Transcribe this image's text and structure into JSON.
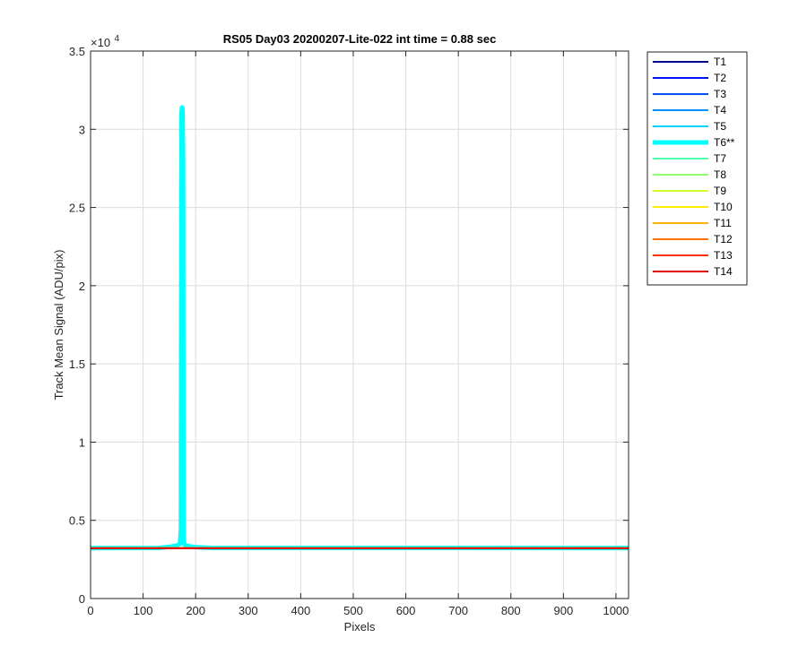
{
  "chart_data": {
    "type": "line",
    "title": "RS05 Day03 20200207-Lite-022 int time = 0.88 sec",
    "xlabel": "Pixels",
    "ylabel": "Track Mean Signal (ADU/pix)",
    "y_exponent_base": "×10",
    "y_exponent_power": "4",
    "xlim": [
      0,
      1024
    ],
    "ylim": [
      0,
      35000
    ],
    "grid": true,
    "legend_position": "outside-right",
    "x_ticks": [
      0,
      100,
      200,
      300,
      400,
      500,
      600,
      700,
      800,
      900,
      1000
    ],
    "x_tick_labels": [
      "0",
      "100",
      "200",
      "300",
      "400",
      "500",
      "600",
      "700",
      "800",
      "900",
      "1000"
    ],
    "y_ticks": [
      0,
      5000,
      10000,
      15000,
      20000,
      25000,
      30000,
      35000
    ],
    "y_tick_labels": [
      "0",
      "0.5",
      "1",
      "1.5",
      "2",
      "2.5",
      "3",
      "3.5"
    ],
    "series": [
      {
        "name": "T1",
        "color": "#00008f",
        "width": 2,
        "x": [
          0,
          1024
        ],
        "y": [
          3220,
          3220
        ]
      },
      {
        "name": "T2",
        "color": "#0010ff",
        "width": 2,
        "x": [
          0,
          1024
        ],
        "y": [
          3222,
          3222
        ]
      },
      {
        "name": "T3",
        "color": "#0050ff",
        "width": 2,
        "x": [
          0,
          1024
        ],
        "y": [
          3224,
          3224
        ]
      },
      {
        "name": "T4",
        "color": "#0090ff",
        "width": 2,
        "x": [
          0,
          1024
        ],
        "y": [
          3226,
          3226
        ]
      },
      {
        "name": "T5",
        "color": "#00d0ff",
        "width": 2,
        "x": [
          0,
          1024
        ],
        "y": [
          3228,
          3228
        ]
      },
      {
        "name": "T6**",
        "color": "#00ffff",
        "width": 5,
        "x": [
          0,
          130,
          150,
          165,
          170,
          172,
          173,
          174,
          175,
          176,
          177,
          178,
          180,
          185,
          200,
          230,
          1024
        ],
        "y": [
          3230,
          3235,
          3300,
          3400,
          3500,
          4500,
          31000,
          31400,
          31300,
          28000,
          4000,
          3500,
          3400,
          3350,
          3280,
          3240,
          3230
        ]
      },
      {
        "name": "T7",
        "color": "#50ffb0",
        "width": 2,
        "x": [
          0,
          1024
        ],
        "y": [
          3226,
          3226
        ]
      },
      {
        "name": "T8",
        "color": "#90ff70",
        "width": 2,
        "x": [
          0,
          1024
        ],
        "y": [
          3224,
          3224
        ]
      },
      {
        "name": "T9",
        "color": "#d0ff30",
        "width": 2,
        "x": [
          0,
          1024
        ],
        "y": [
          3222,
          3222
        ]
      },
      {
        "name": "T10",
        "color": "#ffee00",
        "width": 2,
        "x": [
          0,
          1024
        ],
        "y": [
          3220,
          3220
        ]
      },
      {
        "name": "T11",
        "color": "#ffb000",
        "width": 2,
        "x": [
          0,
          1024
        ],
        "y": [
          3218,
          3218
        ]
      },
      {
        "name": "T12",
        "color": "#ff7000",
        "width": 2,
        "x": [
          0,
          1024
        ],
        "y": [
          3216,
          3216
        ]
      },
      {
        "name": "T13",
        "color": "#ff3000",
        "width": 2,
        "x": [
          0,
          1024
        ],
        "y": [
          3214,
          3214
        ]
      },
      {
        "name": "T14",
        "color": "#e00000",
        "width": 2,
        "x": [
          0,
          1024
        ],
        "y": [
          3212,
          3212
        ]
      }
    ]
  }
}
